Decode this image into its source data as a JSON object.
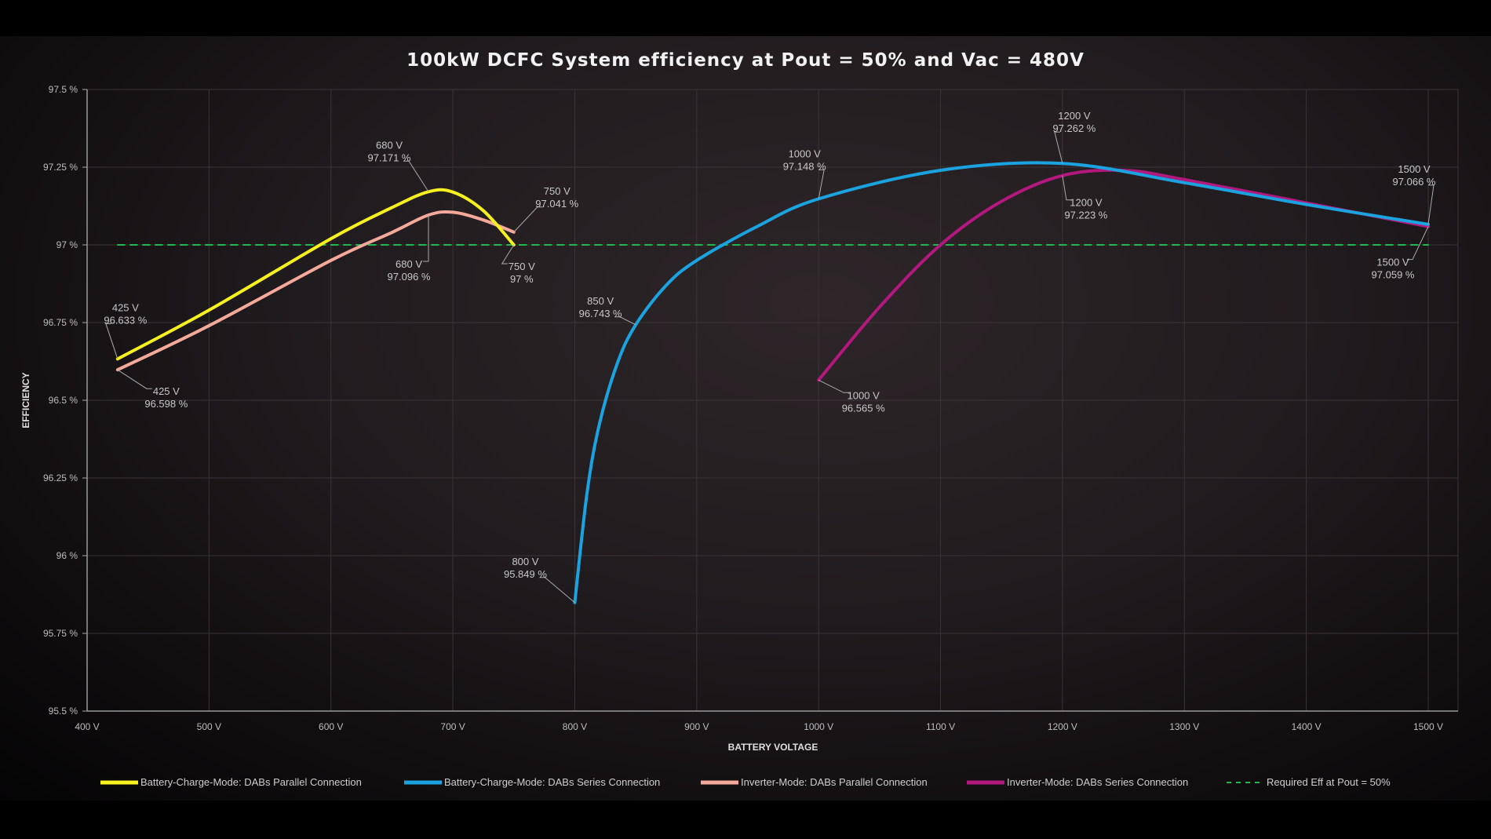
{
  "chart_data": {
    "type": "line",
    "title": "100kW DCFC System efficiency at Pout = 50% and Vac = 480V",
    "xlabel": "BATTERY VOLTAGE",
    "ylabel": "EFFICIENCY",
    "xlim": [
      400,
      1500
    ],
    "ylim": [
      95.5,
      97.5
    ],
    "x_ticks": [
      400,
      500,
      600,
      700,
      800,
      900,
      1000,
      1100,
      1200,
      1300,
      1400,
      1500
    ],
    "x_tick_labels": [
      "400 V",
      "500 V",
      "600 V",
      "700 V",
      "800 V",
      "900 V",
      "1000 V",
      "1100 V",
      "1200 V",
      "1300 V",
      "1400 V",
      "1500 V"
    ],
    "y_ticks": [
      95.5,
      95.75,
      96,
      96.25,
      96.5,
      96.75,
      97,
      97.25,
      97.5
    ],
    "y_tick_labels": [
      "95.5 %",
      "95.75 %",
      "96 %",
      "96.25 %",
      "96.5 %",
      "96.75 %",
      "97 %",
      "97.25 %",
      "97.5 %"
    ],
    "grid": true,
    "legend_position": "bottom",
    "series": [
      {
        "name": "Battery-Charge-Mode: DABs Parallel Connection",
        "color": "#f5f01e",
        "style": "solid",
        "x": [
          425,
          500,
          600,
          650,
          680,
          700,
          725,
          750
        ],
        "y": [
          96.633,
          96.79,
          97.02,
          97.12,
          97.171,
          97.17,
          97.11,
          97.0
        ]
      },
      {
        "name": "Battery-Charge-Mode: DABs Series Connection",
        "color": "#1ba3e0",
        "style": "solid",
        "x": [
          800,
          810,
          820,
          835,
          850,
          875,
          900,
          950,
          1000,
          1100,
          1200,
          1300,
          1400,
          1500
        ],
        "y": [
          95.849,
          96.2,
          96.42,
          96.62,
          96.743,
          96.87,
          96.95,
          97.06,
          97.148,
          97.24,
          97.262,
          97.2,
          97.13,
          97.066
        ]
      },
      {
        "name": "Inverter-Mode: DABs Parallel Connection",
        "color": "#f4a99a",
        "style": "solid",
        "x": [
          425,
          500,
          600,
          650,
          680,
          700,
          725,
          750
        ],
        "y": [
          96.598,
          96.74,
          96.95,
          97.04,
          97.096,
          97.105,
          97.08,
          97.041
        ]
      },
      {
        "name": "Inverter-Mode: DABs Series Connection",
        "color": "#b2187e",
        "style": "solid",
        "x": [
          1000,
          1050,
          1100,
          1150,
          1200,
          1250,
          1300,
          1400,
          1500
        ],
        "y": [
          96.565,
          96.8,
          97.0,
          97.14,
          97.223,
          97.24,
          97.21,
          97.135,
          97.059
        ]
      },
      {
        "name": "Required Eff at Pout = 50%",
        "color": "#1fb84a",
        "style": "dashed",
        "x": [
          425,
          1500
        ],
        "y": [
          97,
          97
        ]
      }
    ],
    "annotations": [
      {
        "series": 0,
        "x": 680,
        "y": 97.171,
        "lines": [
          "680 V",
          "97.171 %"
        ]
      },
      {
        "series": 0,
        "x": 750,
        "y": 97.0,
        "lines": [
          "750 V",
          "97 %"
        ]
      },
      {
        "series": 0,
        "x": 425,
        "y": 96.633,
        "lines": [
          "425 V",
          "96.633 %"
        ]
      },
      {
        "series": 2,
        "x": 750,
        "y": 97.041,
        "lines": [
          "750 V",
          "97.041 %"
        ]
      },
      {
        "series": 2,
        "x": 680,
        "y": 97.096,
        "lines": [
          "680 V",
          "97.096 %"
        ]
      },
      {
        "series": 2,
        "x": 425,
        "y": 96.598,
        "lines": [
          "425 V",
          "96.598 %"
        ]
      },
      {
        "series": 1,
        "x": 1000,
        "y": 97.148,
        "lines": [
          "1000 V",
          "97.148 %"
        ]
      },
      {
        "series": 1,
        "x": 850,
        "y": 96.743,
        "lines": [
          "850 V",
          "96.743 %"
        ]
      },
      {
        "series": 1,
        "x": 800,
        "y": 95.849,
        "lines": [
          "800 V",
          "95.849 %"
        ]
      },
      {
        "series": 1,
        "x": 1200,
        "y": 97.262,
        "lines": [
          "1200 V",
          "97.262 %"
        ]
      },
      {
        "series": 1,
        "x": 1500,
        "y": 97.066,
        "lines": [
          "1500 V",
          "97.066 %"
        ]
      },
      {
        "series": 3,
        "x": 1200,
        "y": 97.223,
        "lines": [
          "1200 V",
          "97.223 %"
        ]
      },
      {
        "series": 3,
        "x": 1500,
        "y": 97.059,
        "lines": [
          "1500 V",
          "97.059 %"
        ]
      },
      {
        "series": 3,
        "x": 1000,
        "y": 96.565,
        "lines": [
          "1000 V",
          "96.565 %"
        ]
      }
    ]
  }
}
